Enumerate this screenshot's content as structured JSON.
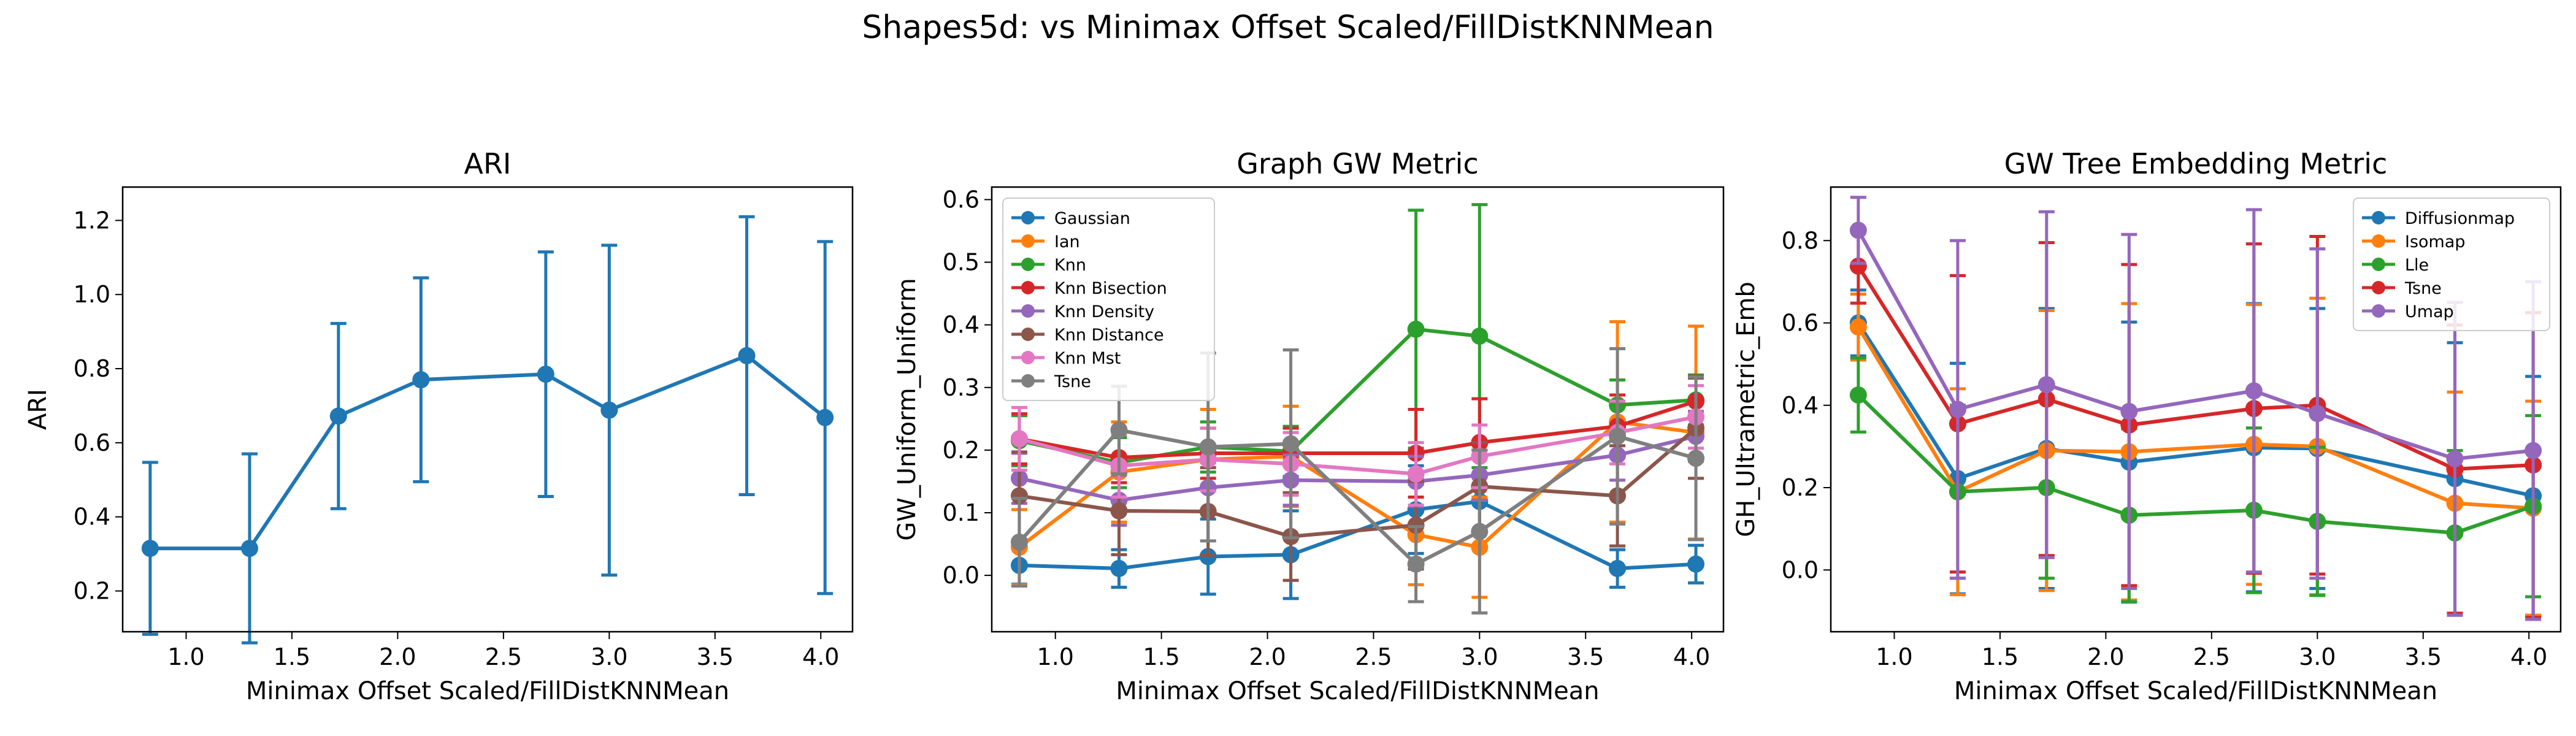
{
  "figure": {
    "title": "Shapes5d: vs Minimax Offset Scaled/FillDistKNNMean"
  },
  "chart_data": [
    {
      "type": "line",
      "title": "ARI",
      "xlabel": "Minimax Offset Scaled/FillDistKNNMean",
      "ylabel": "ARI",
      "xlim": [
        0.7,
        4.15
      ],
      "ylim": [
        0.09,
        1.29
      ],
      "xticks": [
        1.0,
        1.5,
        2.0,
        2.5,
        3.0,
        3.5,
        4.0
      ],
      "xtick_labels": [
        "1.0",
        "1.5",
        "2.0",
        "2.5",
        "3.0",
        "3.5",
        "4.0"
      ],
      "yticks": [
        0.2,
        0.4,
        0.6,
        0.8,
        1.0,
        1.2
      ],
      "ytick_labels": [
        "0.2",
        "0.4",
        "0.6",
        "0.8",
        "1.0",
        "1.2"
      ],
      "legend": null,
      "x": [
        0.83,
        1.3,
        1.72,
        2.11,
        2.7,
        3.0,
        3.65,
        4.02
      ],
      "series": [
        {
          "name": "",
          "color": "#1f77b4",
          "values": [
            0.315,
            0.315,
            0.672,
            0.77,
            0.785,
            0.688,
            0.835,
            0.668
          ],
          "err": [
            0.232,
            0.255,
            0.25,
            0.275,
            0.33,
            0.445,
            0.375,
            0.475
          ]
        }
      ]
    },
    {
      "type": "line",
      "title": "Graph GW Metric",
      "xlabel": "Minimax Offset Scaled/FillDistKNNMean",
      "ylabel": "GW_Uniform_Uniform",
      "xlim": [
        0.7,
        4.15
      ],
      "ylim": [
        -0.09,
        0.62
      ],
      "xticks": [
        1.0,
        1.5,
        2.0,
        2.5,
        3.0,
        3.5,
        4.0
      ],
      "xtick_labels": [
        "1.0",
        "1.5",
        "2.0",
        "2.5",
        "3.0",
        "3.5",
        "4.0"
      ],
      "yticks": [
        0.0,
        0.1,
        0.2,
        0.3,
        0.4,
        0.5,
        0.6
      ],
      "ytick_labels": [
        "0.0",
        "0.1",
        "0.2",
        "0.3",
        "0.4",
        "0.5",
        "0.6"
      ],
      "legend": "upper-left",
      "x": [
        0.83,
        1.3,
        1.72,
        2.11,
        2.7,
        3.0,
        3.65,
        4.02
      ],
      "series": [
        {
          "name": "Gaussian",
          "color": "#1f77b4",
          "values": [
            0.016,
            0.011,
            0.03,
            0.033,
            0.105,
            0.118,
            0.011,
            0.018
          ],
          "err": [
            0.03,
            0.03,
            0.06,
            0.07,
            0.07,
            0.07,
            0.03,
            0.03
          ]
        },
        {
          "name": "Ian",
          "color": "#ff7f0e",
          "values": [
            0.045,
            0.165,
            0.185,
            0.19,
            0.065,
            0.045,
            0.245,
            0.228
          ],
          "err": [
            0.06,
            0.08,
            0.08,
            0.08,
            0.08,
            0.08,
            0.16,
            0.17
          ]
        },
        {
          "name": "Knn",
          "color": "#2ca02c",
          "values": [
            0.215,
            0.18,
            0.205,
            0.198,
            0.393,
            0.382,
            0.272,
            0.28
          ],
          "err": [
            0.04,
            0.04,
            0.04,
            0.04,
            0.19,
            0.21,
            0.04,
            0.04
          ]
        },
        {
          "name": "Knn Bisection",
          "color": "#d62728",
          "values": [
            0.218,
            0.188,
            0.195,
            0.195,
            0.195,
            0.212,
            0.238,
            0.278
          ],
          "err": [
            0.04,
            0.04,
            0.04,
            0.04,
            0.07,
            0.07,
            0.05,
            0.04
          ]
        },
        {
          "name": "Knn Density",
          "color": "#9467bd",
          "values": [
            0.155,
            0.12,
            0.14,
            0.152,
            0.15,
            0.16,
            0.192,
            0.222
          ],
          "err": [
            0.04,
            0.04,
            0.04,
            0.04,
            0.04,
            0.04,
            0.04,
            0.04
          ]
        },
        {
          "name": "Knn Distance",
          "color": "#8c564b",
          "values": [
            0.127,
            0.103,
            0.102,
            0.062,
            0.08,
            0.142,
            0.127,
            0.235
          ],
          "err": [
            0.07,
            0.07,
            0.07,
            0.07,
            0.07,
            0.07,
            0.08,
            0.08
          ]
        },
        {
          "name": "Knn Mst",
          "color": "#e377c2",
          "values": [
            0.218,
            0.175,
            0.185,
            0.178,
            0.162,
            0.19,
            0.228,
            0.253
          ],
          "err": [
            0.05,
            0.05,
            0.05,
            0.05,
            0.05,
            0.05,
            0.05,
            0.05
          ]
        },
        {
          "name": "Tsne",
          "color": "#7f7f7f",
          "values": [
            0.053,
            0.232,
            0.205,
            0.21,
            0.018,
            0.07,
            0.222,
            0.187
          ],
          "err": [
            0.07,
            0.07,
            0.15,
            0.15,
            0.06,
            0.13,
            0.14,
            0.13
          ]
        }
      ]
    },
    {
      "type": "line",
      "title": "GW Tree Embedding Metric",
      "xlabel": "Minimax Offset Scaled/FillDistKNNMean",
      "ylabel": "GH_Ultrametric_Emb",
      "xlim": [
        0.7,
        4.15
      ],
      "ylim": [
        -0.15,
        0.93
      ],
      "xticks": [
        1.0,
        1.5,
        2.0,
        2.5,
        3.0,
        3.5,
        4.0
      ],
      "xtick_labels": [
        "1.0",
        "1.5",
        "2.0",
        "2.5",
        "3.0",
        "3.5",
        "4.0"
      ],
      "yticks": [
        0.0,
        0.2,
        0.4,
        0.6,
        0.8
      ],
      "ytick_labels": [
        "0.0",
        "0.2",
        "0.4",
        "0.6",
        "0.8"
      ],
      "legend": "upper-right",
      "x": [
        0.83,
        1.3,
        1.72,
        2.11,
        2.7,
        3.0,
        3.65,
        4.02
      ],
      "series": [
        {
          "name": "Diffusionmap",
          "color": "#1f77b4",
          "values": [
            0.6,
            0.222,
            0.295,
            0.262,
            0.297,
            0.295,
            0.222,
            0.18
          ],
          "err": [
            0.08,
            0.28,
            0.34,
            0.34,
            0.35,
            0.34,
            0.33,
            0.29
          ]
        },
        {
          "name": "Isomap",
          "color": "#ff7f0e",
          "values": [
            0.59,
            0.19,
            0.29,
            0.287,
            0.305,
            0.3,
            0.162,
            0.15
          ],
          "err": [
            0.08,
            0.25,
            0.34,
            0.36,
            0.34,
            0.36,
            0.27,
            0.26
          ]
        },
        {
          "name": "Lle",
          "color": "#2ca02c",
          "values": [
            0.425,
            0.19,
            0.2,
            0.133,
            0.145,
            0.118,
            0.09,
            0.155
          ],
          "err": [
            0.09,
            0.21,
            0.22,
            0.21,
            0.2,
            0.18,
            0.2,
            0.22
          ]
        },
        {
          "name": "Tsne",
          "color": "#d62728",
          "values": [
            0.738,
            0.355,
            0.415,
            0.352,
            0.392,
            0.4,
            0.245,
            0.255
          ],
          "err": [
            0.09,
            0.36,
            0.38,
            0.39,
            0.4,
            0.41,
            0.35,
            0.37
          ]
        },
        {
          "name": "Umap",
          "color": "#9467bd",
          "values": [
            0.825,
            0.39,
            0.45,
            0.385,
            0.435,
            0.38,
            0.27,
            0.29
          ],
          "err": [
            0.08,
            0.41,
            0.42,
            0.43,
            0.44,
            0.4,
            0.38,
            0.41
          ]
        }
      ]
    }
  ]
}
